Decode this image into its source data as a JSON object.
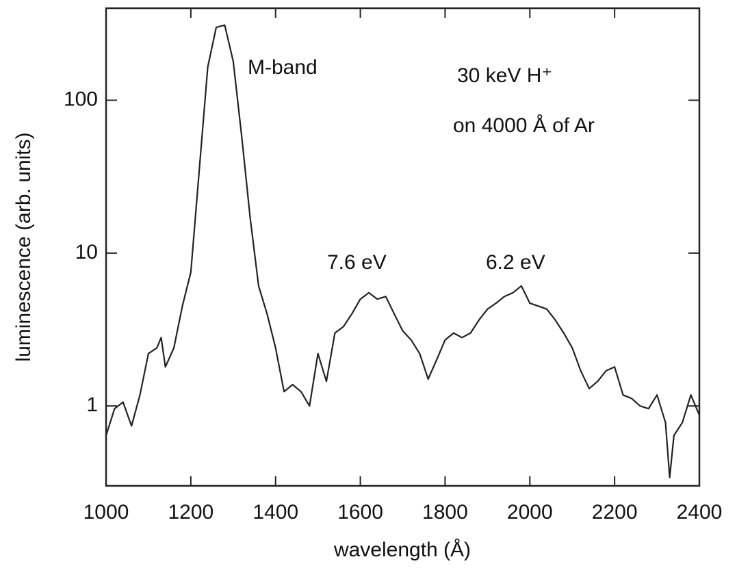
{
  "chart_data": {
    "type": "line",
    "x_label": "wavelength (Å)",
    "y_label": "luminescence (arb. units)",
    "annotations": [
      "M-band",
      "30 keV H⁺",
      "on 4000 Å of Ar",
      "7.6 eV",
      "6.2 eV"
    ],
    "y_log_scale": true,
    "xlim": [
      1000,
      2400
    ],
    "xticks": [
      1000,
      1200,
      1400,
      1600,
      1800,
      2000,
      2200,
      2400
    ],
    "ylim": [
      0.3,
      400
    ],
    "yticks": [
      1,
      10,
      100
    ],
    "color": "#222222",
    "x": [
      1000,
      1020,
      1040,
      1060,
      1080,
      1100,
      1120,
      1130,
      1140,
      1160,
      1180,
      1200,
      1220,
      1240,
      1260,
      1280,
      1300,
      1320,
      1340,
      1360,
      1380,
      1400,
      1420,
      1440,
      1460,
      1480,
      1500,
      1520,
      1540,
      1560,
      1580,
      1600,
      1620,
      1640,
      1660,
      1680,
      1700,
      1720,
      1740,
      1760,
      1780,
      1800,
      1820,
      1840,
      1860,
      1880,
      1900,
      1920,
      1940,
      1960,
      1980,
      2000,
      2020,
      2040,
      2060,
      2080,
      2100,
      2120,
      2140,
      2160,
      2180,
      2200,
      2220,
      2240,
      2260,
      2280,
      2300,
      2320,
      2330,
      2340,
      2360,
      2380,
      2400
    ],
    "values": [
      0.64,
      0.96,
      1.06,
      0.74,
      1.18,
      2.2,
      2.4,
      2.8,
      1.8,
      2.4,
      4.5,
      7.5,
      35,
      165,
      300,
      310,
      180,
      58,
      17,
      6.1,
      4.0,
      2.4,
      1.24,
      1.38,
      1.24,
      1.0,
      2.2,
      1.45,
      3.0,
      3.3,
      4.0,
      5.0,
      5.5,
      5.0,
      5.2,
      4.0,
      3.1,
      2.7,
      2.2,
      1.5,
      2.0,
      2.7,
      3.0,
      2.8,
      3.0,
      3.65,
      4.3,
      4.7,
      5.2,
      5.5,
      6.1,
      4.7,
      4.5,
      4.3,
      3.65,
      3.0,
      2.4,
      1.7,
      1.3,
      1.45,
      1.7,
      1.8,
      1.18,
      1.12,
      1.0,
      0.96,
      1.18,
      0.78,
      0.34,
      0.64,
      0.78,
      1.18,
      0.87
    ]
  }
}
